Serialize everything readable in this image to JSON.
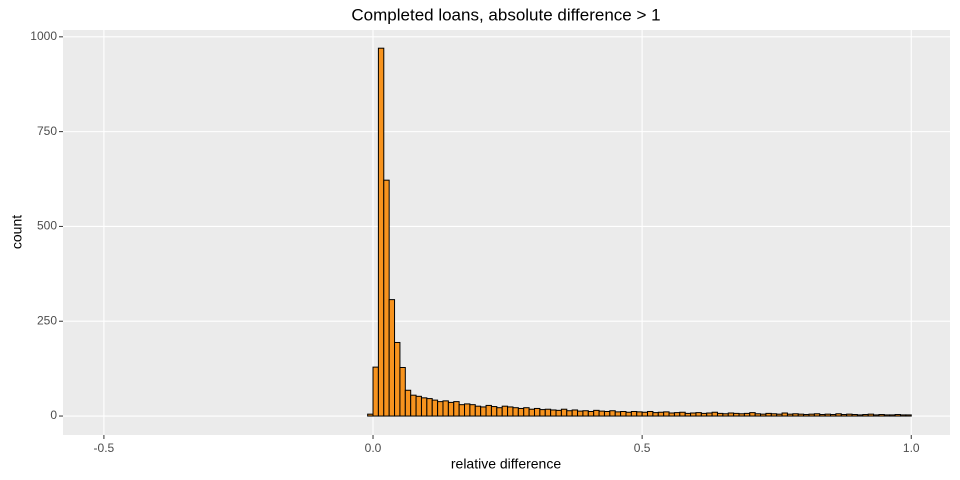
{
  "chart_data": {
    "type": "histogram",
    "title": "Completed loans, absolute difference > 1",
    "x_label": "relative difference",
    "y_label": "count",
    "color": "#f7931e",
    "edge_color": "#000000",
    "grid": true,
    "bins": [
      -0.5,
      -0.49,
      -0.48,
      -0.47,
      -0.46,
      -0.45,
      -0.44,
      -0.43,
      -0.42,
      -0.41,
      -0.4,
      -0.39,
      -0.38,
      -0.37,
      -0.36,
      -0.35,
      -0.34,
      -0.33,
      -0.32,
      -0.31,
      -0.3,
      -0.29,
      -0.28,
      -0.27,
      -0.26,
      -0.25,
      -0.24,
      -0.23,
      -0.22,
      -0.21,
      -0.2,
      -0.19,
      -0.18,
      -0.17,
      -0.16,
      -0.15,
      -0.14,
      -0.13,
      -0.12,
      -0.11,
      -0.1,
      -0.09,
      -0.08,
      -0.07,
      -0.06,
      -0.05,
      -0.04,
      -0.03,
      -0.02,
      -0.01,
      0,
      0.01,
      0.02,
      0.03,
      0.04,
      0.05,
      0.06,
      0.07,
      0.08,
      0.09,
      0.1,
      0.11,
      0.12,
      0.13,
      0.14,
      0.15,
      0.16,
      0.17,
      0.18,
      0.19,
      0.2,
      0.21,
      0.22,
      0.23,
      0.24,
      0.25,
      0.26,
      0.27,
      0.28,
      0.29,
      0.3,
      0.31,
      0.32,
      0.33,
      0.34,
      0.35,
      0.36,
      0.37,
      0.38,
      0.39,
      0.4,
      0.41,
      0.42,
      0.43,
      0.44,
      0.45,
      0.46,
      0.47,
      0.48,
      0.49,
      0.5,
      0.51,
      0.52,
      0.53,
      0.54,
      0.55,
      0.56,
      0.57,
      0.58,
      0.59,
      0.6,
      0.61,
      0.62,
      0.63,
      0.64,
      0.65,
      0.66,
      0.67,
      0.68,
      0.69,
      0.7,
      0.71,
      0.72,
      0.73,
      0.74,
      0.75,
      0.76,
      0.77,
      0.78,
      0.79,
      0.8,
      0.81,
      0.82,
      0.83,
      0.84,
      0.85,
      0.86,
      0.87,
      0.88,
      0.89,
      0.9,
      0.91,
      0.92,
      0.93,
      0.94,
      0.95,
      0.96,
      0.97,
      0.98,
      0.99,
      1
    ],
    "values": [
      0,
      0,
      0,
      0,
      0,
      0,
      0,
      0,
      0,
      0,
      0,
      0,
      0,
      0,
      0,
      0,
      0,
      0,
      0,
      0,
      0,
      0,
      0,
      0,
      0,
      0,
      0,
      0,
      0,
      0,
      0,
      0,
      0,
      0,
      0,
      0,
      0,
      0,
      0,
      0,
      0,
      0,
      0,
      0,
      0,
      0,
      0,
      0,
      0,
      5,
      129,
      970,
      622,
      307,
      194,
      128,
      68,
      55,
      52,
      48,
      46,
      42,
      38,
      40,
      36,
      38,
      30,
      32,
      30,
      26,
      24,
      28,
      25,
      22,
      26,
      24,
      22,
      20,
      22,
      18,
      20,
      17,
      18,
      16,
      15,
      18,
      14,
      16,
      13,
      14,
      12,
      15,
      13,
      12,
      14,
      11,
      12,
      10,
      12,
      11,
      10,
      12,
      9,
      10,
      11,
      8,
      9,
      10,
      7,
      8,
      9,
      7,
      8,
      10,
      7,
      6,
      8,
      7,
      6,
      7,
      9,
      6,
      5,
      7,
      6,
      5,
      8,
      5,
      6,
      5,
      4,
      5,
      6,
      4,
      5,
      4,
      6,
      4,
      5,
      4,
      3,
      4,
      5,
      3,
      4,
      3,
      3,
      4,
      3,
      3
    ],
    "xlim": [
      -0.576,
      1.072
    ],
    "ylim": [
      -50,
      1018
    ],
    "xticks": [
      -0.5,
      {
        "value": 0,
        "label": "0.0"
      },
      0.5,
      {
        "value": 1,
        "label": "1.0"
      }
    ],
    "yticks": [
      0,
      250,
      500,
      750,
      1000
    ]
  }
}
